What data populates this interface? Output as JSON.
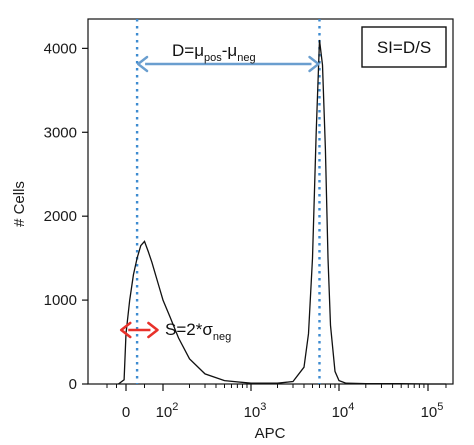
{
  "chart_data": {
    "type": "area",
    "xlabel": "APC",
    "ylabel": "# Cells",
    "x_tick_labels": [
      {
        "value": 0,
        "text": "0"
      },
      {
        "value": 100,
        "base": "10",
        "exp": "2"
      },
      {
        "value": 1000,
        "base": "10",
        "exp": "3"
      },
      {
        "value": 10000,
        "base": "10",
        "exp": "4"
      },
      {
        "value": 100000,
        "base": "10",
        "exp": "5"
      }
    ],
    "y_ticks": [
      0,
      1000,
      2000,
      3000,
      4000
    ],
    "ylim": [
      0,
      4350
    ],
    "x_scale": "biexponential (logicle)",
    "grid": false,
    "series": [
      {
        "x": [
          -40,
          -10,
          0,
          10,
          20,
          30,
          40,
          50,
          60,
          70,
          80,
          90,
          100,
          120,
          150,
          200,
          300,
          500,
          1000,
          2000,
          3000,
          4000,
          4500,
          5000,
          5500,
          6000,
          6500,
          7000,
          7500,
          8000,
          9000,
          10000,
          12000,
          20000,
          50000,
          100000,
          200000
        ],
        "y": [
          0,
          50,
          600,
          1000,
          1300,
          1500,
          1650,
          1700,
          1580,
          1450,
          1300,
          1150,
          1000,
          800,
          550,
          300,
          120,
          40,
          10,
          10,
          30,
          200,
          600,
          1500,
          3000,
          4100,
          3800,
          2800,
          1500,
          700,
          150,
          40,
          10,
          5,
          5,
          0,
          0
        ]
      }
    ],
    "annotations": {
      "box_text": "SI=D/S",
      "d_formula": {
        "main": "D=μ",
        "sub1": "pos",
        "mid": "-μ",
        "sub2": "neg"
      },
      "s_formula": {
        "main": "S=2*σ",
        "sub": "neg"
      },
      "mu_neg": 30,
      "mu_pos": 6000,
      "sigma_neg_span": [
        -25,
        85
      ],
      "mu_line_color": "#3d8bd0",
      "d_arrow_color": "#6a9ecf",
      "s_arrow_color": "#e8312a"
    }
  }
}
